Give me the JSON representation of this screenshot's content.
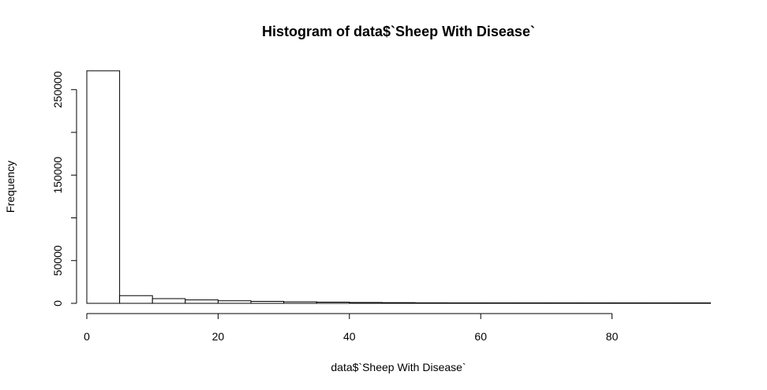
{
  "chart_data": {
    "type": "bar",
    "title": "Histogram of data$`Sheep With Disease`",
    "xlabel": "data$`Sheep With Disease`",
    "ylabel": "Frequency",
    "bin_width": 5,
    "bins": [
      {
        "x0": 0,
        "x1": 5,
        "count": 272000
      },
      {
        "x0": 5,
        "x1": 10,
        "count": 9000
      },
      {
        "x0": 10,
        "x1": 15,
        "count": 5500
      },
      {
        "x0": 15,
        "x1": 20,
        "count": 4000
      },
      {
        "x0": 20,
        "x1": 25,
        "count": 3000
      },
      {
        "x0": 25,
        "x1": 30,
        "count": 2300
      },
      {
        "x0": 30,
        "x1": 35,
        "count": 1800
      },
      {
        "x0": 35,
        "x1": 40,
        "count": 1400
      },
      {
        "x0": 40,
        "x1": 45,
        "count": 1000
      },
      {
        "x0": 45,
        "x1": 50,
        "count": 800
      },
      {
        "x0": 50,
        "x1": 55,
        "count": 600
      },
      {
        "x0": 55,
        "x1": 60,
        "count": 450
      },
      {
        "x0": 60,
        "x1": 65,
        "count": 350
      },
      {
        "x0": 65,
        "x1": 70,
        "count": 250
      },
      {
        "x0": 70,
        "x1": 75,
        "count": 180
      },
      {
        "x0": 75,
        "x1": 80,
        "count": 130
      },
      {
        "x0": 80,
        "x1": 85,
        "count": 90
      },
      {
        "x0": 85,
        "x1": 90,
        "count": 60
      },
      {
        "x0": 90,
        "x1": 95,
        "count": 40
      }
    ],
    "xlim": [
      0,
      95
    ],
    "ylim": [
      0,
      272000
    ],
    "x_ticks": [
      0,
      20,
      40,
      60,
      80
    ],
    "y_ticks": [
      0,
      50000,
      150000,
      250000
    ],
    "grid": false,
    "legend": "none"
  }
}
